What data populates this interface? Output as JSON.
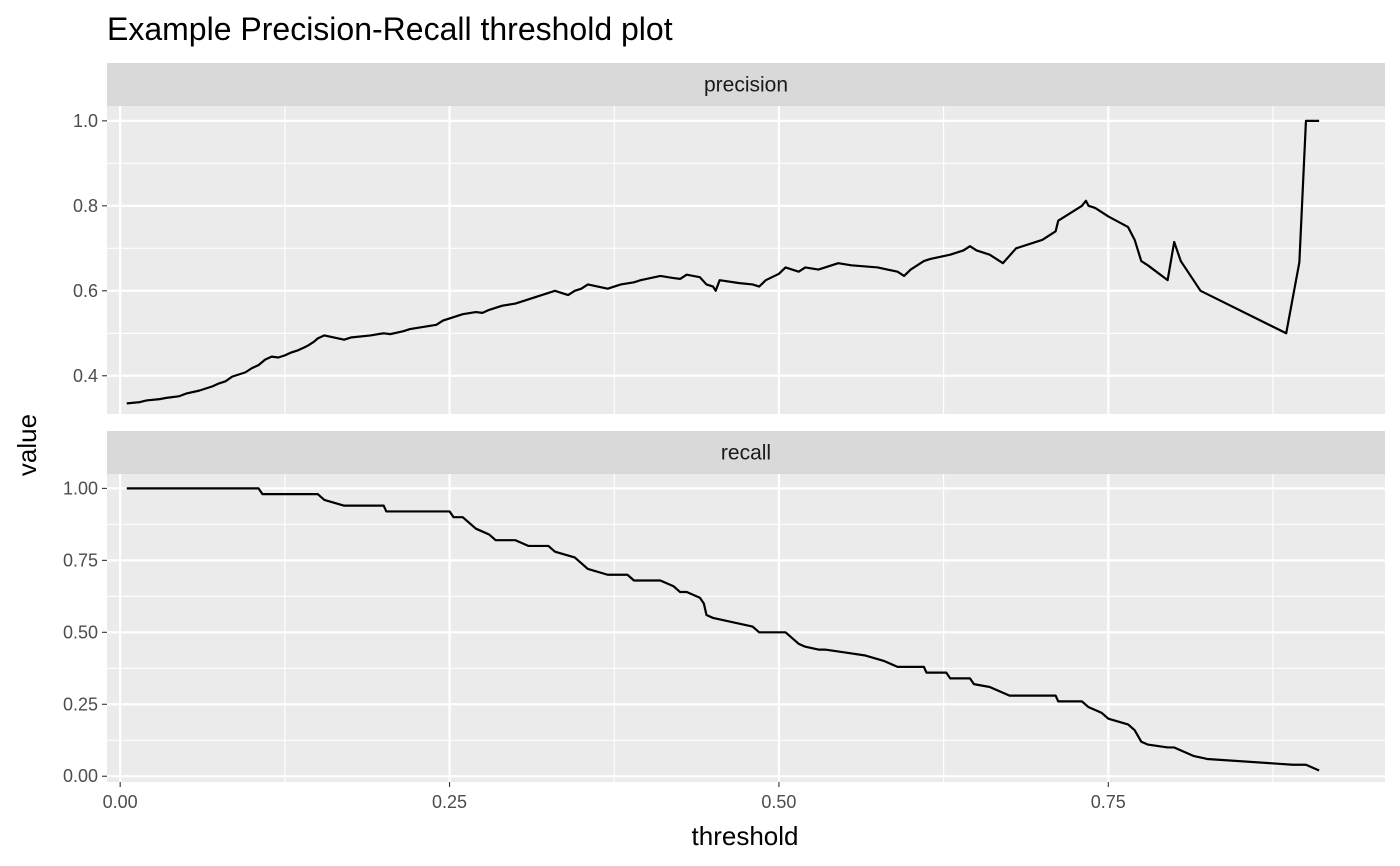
{
  "chart_data": {
    "type": "line",
    "title": "Example Precision-Recall threshold plot",
    "xlabel": "threshold",
    "ylabel": "value",
    "xlim": [
      -0.01,
      0.96
    ],
    "x_ticks": [
      0.0,
      0.25,
      0.5,
      0.75
    ],
    "x_tick_labels": [
      "0.00",
      "0.25",
      "0.50",
      "0.75"
    ],
    "grid": true,
    "facets": [
      {
        "name": "precision",
        "ylim": [
          0.31,
          1.035
        ],
        "y_ticks": [
          0.4,
          0.6,
          0.8,
          1.0
        ],
        "y_tick_labels": [
          "0.4",
          "0.6",
          "0.8",
          "1.0"
        ],
        "x": [
          0.005,
          0.015,
          0.02,
          0.03,
          0.035,
          0.045,
          0.05,
          0.06,
          0.07,
          0.075,
          0.08,
          0.085,
          0.095,
          0.1,
          0.105,
          0.11,
          0.115,
          0.12,
          0.125,
          0.13,
          0.135,
          0.14,
          0.143,
          0.147,
          0.15,
          0.155,
          0.17,
          0.175,
          0.19,
          0.2,
          0.205,
          0.215,
          0.22,
          0.23,
          0.24,
          0.245,
          0.25,
          0.255,
          0.26,
          0.27,
          0.275,
          0.28,
          0.285,
          0.29,
          0.3,
          0.305,
          0.31,
          0.32,
          0.325,
          0.33,
          0.34,
          0.345,
          0.35,
          0.355,
          0.37,
          0.38,
          0.39,
          0.395,
          0.41,
          0.42,
          0.425,
          0.43,
          0.44,
          0.445,
          0.45,
          0.452,
          0.455,
          0.47,
          0.48,
          0.485,
          0.49,
          0.5,
          0.505,
          0.51,
          0.515,
          0.52,
          0.53,
          0.545,
          0.555,
          0.575,
          0.59,
          0.595,
          0.6,
          0.605,
          0.61,
          0.615,
          0.63,
          0.64,
          0.645,
          0.65,
          0.66,
          0.665,
          0.67,
          0.68,
          0.7,
          0.71,
          0.712,
          0.73,
          0.733,
          0.735,
          0.74,
          0.745,
          0.75,
          0.765,
          0.77,
          0.775,
          0.78,
          0.795,
          0.8,
          0.805,
          0.82,
          0.885,
          0.895,
          0.9,
          0.91
        ],
        "y": [
          0.335,
          0.338,
          0.342,
          0.345,
          0.348,
          0.352,
          0.358,
          0.365,
          0.375,
          0.382,
          0.387,
          0.398,
          0.408,
          0.418,
          0.425,
          0.438,
          0.445,
          0.443,
          0.448,
          0.455,
          0.46,
          0.467,
          0.472,
          0.48,
          0.488,
          0.495,
          0.485,
          0.49,
          0.495,
          0.5,
          0.498,
          0.505,
          0.51,
          0.515,
          0.52,
          0.53,
          0.535,
          0.54,
          0.545,
          0.55,
          0.548,
          0.555,
          0.56,
          0.565,
          0.57,
          0.575,
          0.58,
          0.59,
          0.595,
          0.6,
          0.59,
          0.6,
          0.605,
          0.615,
          0.605,
          0.615,
          0.62,
          0.625,
          0.635,
          0.63,
          0.628,
          0.638,
          0.632,
          0.615,
          0.61,
          0.6,
          0.625,
          0.618,
          0.615,
          0.61,
          0.625,
          0.64,
          0.655,
          0.65,
          0.645,
          0.655,
          0.65,
          0.665,
          0.66,
          0.655,
          0.645,
          0.635,
          0.65,
          0.66,
          0.67,
          0.675,
          0.685,
          0.695,
          0.705,
          0.695,
          0.685,
          0.675,
          0.665,
          0.7,
          0.72,
          0.74,
          0.765,
          0.8,
          0.812,
          0.8,
          0.795,
          0.785,
          0.775,
          0.75,
          0.72,
          0.67,
          0.66,
          0.625,
          0.715,
          0.67,
          0.6,
          0.5,
          0.667,
          1.0,
          1.0
        ]
      },
      {
        "name": "recall",
        "ylim": [
          -0.02,
          1.05
        ],
        "y_ticks": [
          0.0,
          0.25,
          0.5,
          0.75,
          1.0
        ],
        "y_tick_labels": [
          "0.00",
          "0.25",
          "0.50",
          "0.75",
          "1.00"
        ],
        "x": [
          0.005,
          0.105,
          0.108,
          0.15,
          0.155,
          0.17,
          0.2,
          0.202,
          0.25,
          0.253,
          0.26,
          0.265,
          0.27,
          0.275,
          0.28,
          0.285,
          0.3,
          0.31,
          0.325,
          0.33,
          0.345,
          0.35,
          0.355,
          0.37,
          0.385,
          0.39,
          0.41,
          0.42,
          0.425,
          0.43,
          0.44,
          0.443,
          0.445,
          0.45,
          0.48,
          0.485,
          0.505,
          0.51,
          0.515,
          0.52,
          0.53,
          0.535,
          0.55,
          0.565,
          0.58,
          0.59,
          0.595,
          0.61,
          0.612,
          0.627,
          0.63,
          0.645,
          0.648,
          0.66,
          0.665,
          0.675,
          0.71,
          0.712,
          0.73,
          0.735,
          0.74,
          0.745,
          0.75,
          0.765,
          0.77,
          0.775,
          0.78,
          0.795,
          0.8,
          0.805,
          0.81,
          0.815,
          0.825,
          0.89,
          0.9,
          0.91
        ],
        "y": [
          1.0,
          1.0,
          0.98,
          0.98,
          0.96,
          0.94,
          0.94,
          0.92,
          0.92,
          0.9,
          0.9,
          0.88,
          0.86,
          0.85,
          0.84,
          0.82,
          0.82,
          0.8,
          0.8,
          0.78,
          0.76,
          0.74,
          0.72,
          0.7,
          0.7,
          0.68,
          0.68,
          0.66,
          0.64,
          0.64,
          0.62,
          0.6,
          0.56,
          0.55,
          0.52,
          0.5,
          0.5,
          0.48,
          0.46,
          0.45,
          0.44,
          0.44,
          0.43,
          0.42,
          0.4,
          0.38,
          0.38,
          0.38,
          0.36,
          0.36,
          0.34,
          0.34,
          0.32,
          0.31,
          0.3,
          0.28,
          0.28,
          0.26,
          0.26,
          0.24,
          0.23,
          0.22,
          0.2,
          0.18,
          0.16,
          0.12,
          0.11,
          0.1,
          0.1,
          0.09,
          0.08,
          0.07,
          0.06,
          0.04,
          0.04,
          0.02
        ]
      }
    ]
  },
  "colors": {
    "panel_bg": "#ebebeb",
    "strip_bg": "#d9d9d9",
    "grid": "#ffffff",
    "line": "#000000",
    "text": "#000000",
    "tick_text": "#4d4d4d"
  }
}
